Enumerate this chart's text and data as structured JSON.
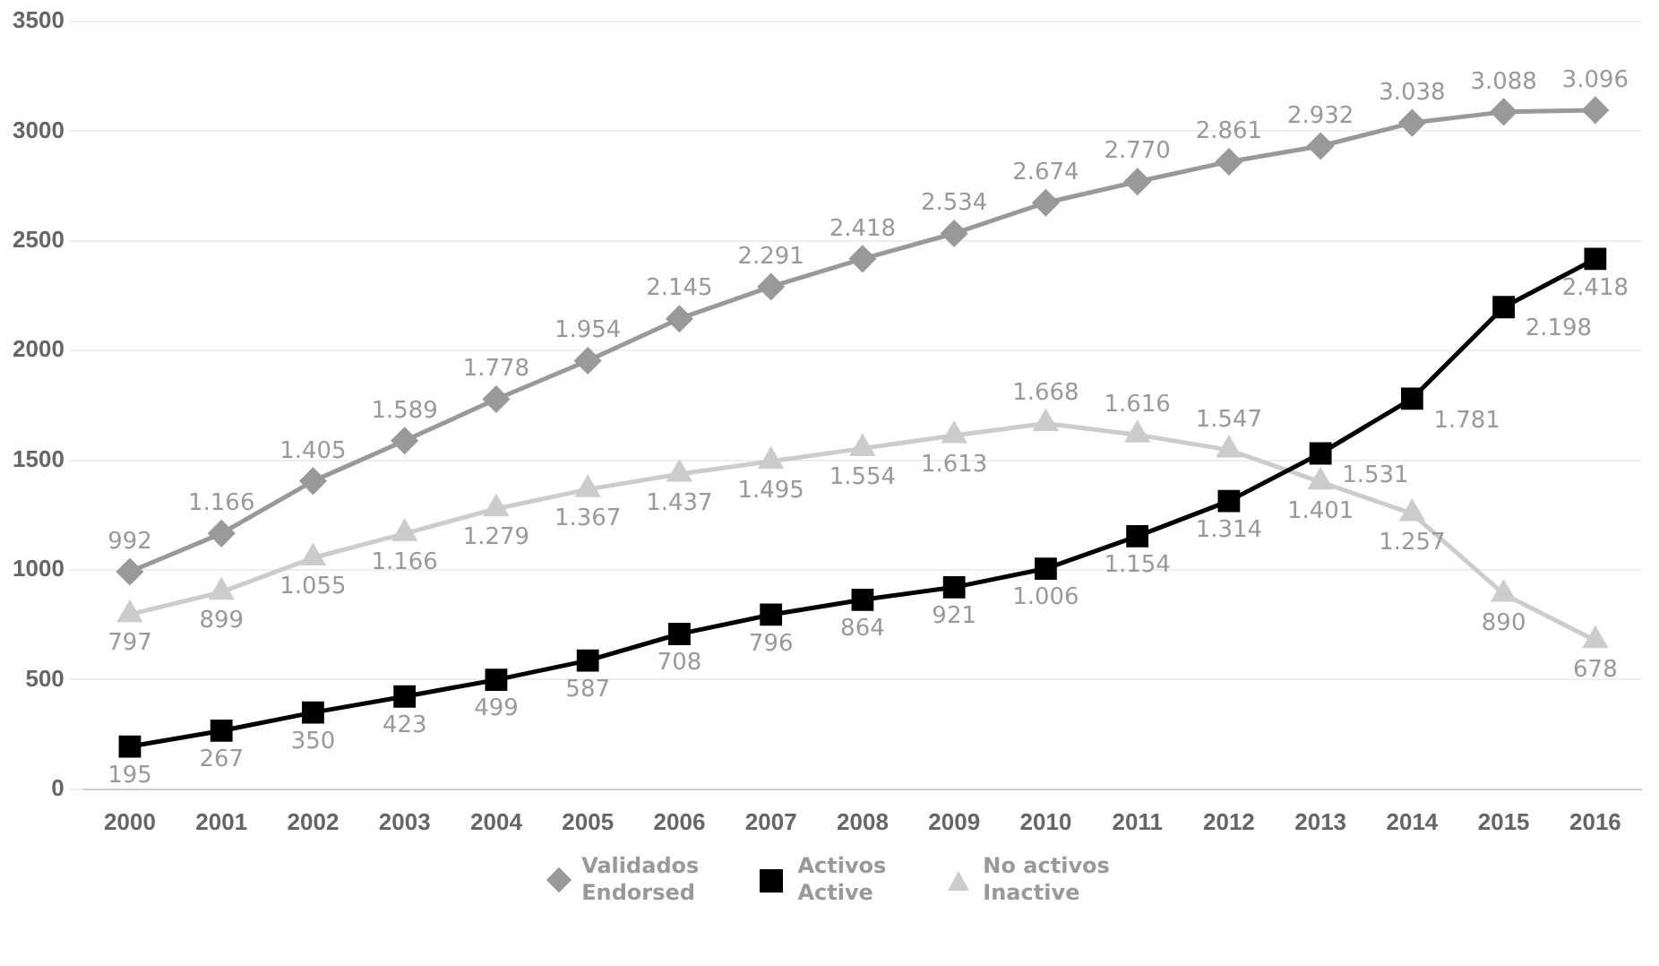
{
  "chart_data": {
    "type": "line",
    "categories": [
      "2000",
      "2001",
      "2002",
      "2003",
      "2004",
      "2005",
      "2006",
      "2007",
      "2008",
      "2009",
      "2010",
      "2011",
      "2012",
      "2013",
      "2014",
      "2015",
      "2016"
    ],
    "ylim": [
      0,
      3500
    ],
    "yticks": [
      0,
      500,
      1000,
      1500,
      2000,
      2500,
      3000,
      3500
    ],
    "grid": "y",
    "legend": "bottom",
    "line_style": "solid",
    "series": [
      {
        "name": "Validados\nEndorsed",
        "color": "#999999",
        "marker": "diamond",
        "values": [
          992,
          1166,
          1405,
          1589,
          1778,
          1954,
          2145,
          2291,
          2418,
          2534,
          2674,
          2770,
          2861,
          2932,
          3038,
          3088,
          3096
        ],
        "value_labels": [
          "992",
          "1.166",
          "1.405",
          "1.589",
          "1.778",
          "1.954",
          "2.145",
          "2.291",
          "2.418",
          "2.534",
          "2.674",
          "2.770",
          "2.861",
          "2.932",
          "3.038",
          "3.088",
          "3.096"
        ]
      },
      {
        "name": "Activos\nActive",
        "color": "#000000",
        "marker": "square",
        "values": [
          195,
          267,
          350,
          423,
          499,
          587,
          708,
          796,
          864,
          921,
          1006,
          1154,
          1314,
          1531,
          1781,
          2198,
          2418
        ],
        "value_labels": [
          "195",
          "267",
          "350",
          "423",
          "499",
          "587",
          "708",
          "796",
          "864",
          "921",
          "1.006",
          "1.154",
          "1.314",
          "1.531",
          "1.781",
          "2.198",
          "2.418"
        ]
      },
      {
        "name": "No activos\nInactive",
        "color": "#cccccc",
        "marker": "triangle",
        "values": [
          797,
          899,
          1055,
          1166,
          1279,
          1367,
          1437,
          1495,
          1554,
          1613,
          1668,
          1616,
          1547,
          1401,
          1257,
          890,
          678
        ],
        "value_labels": [
          "797",
          "899",
          "1.055",
          "1.166",
          "1.279",
          "1.367",
          "1.437",
          "1.495",
          "1.554",
          "1.613",
          "1.668",
          "1.616",
          "1.547",
          "1.401",
          "1.257",
          "890",
          "678"
        ]
      }
    ]
  }
}
